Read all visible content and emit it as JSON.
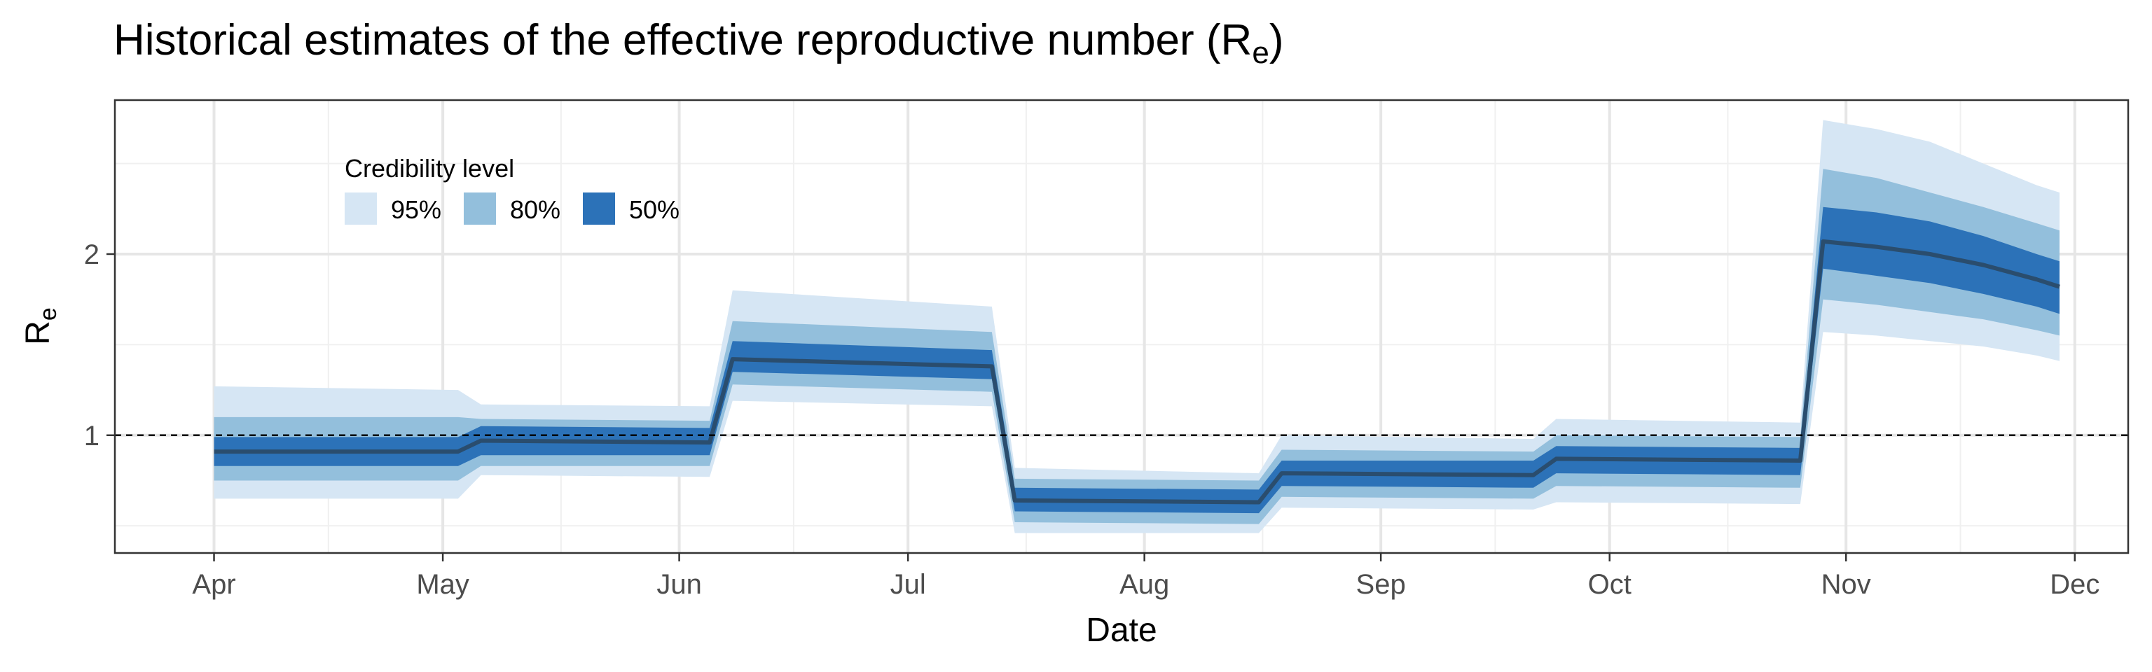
{
  "chart_data": {
    "type": "area",
    "title": "Historical estimates of the effective reproductive number (R",
    "title_subscript": "e",
    "title_suffix": ")",
    "xlabel": "Date",
    "ylabel": "R",
    "ylabel_subscript": "e",
    "x_ticks": [
      {
        "label": "Apr",
        "date": "2020-04-01"
      },
      {
        "label": "May",
        "date": "2020-05-01"
      },
      {
        "label": "Jun",
        "date": "2020-06-01"
      },
      {
        "label": "Jul",
        "date": "2020-07-01"
      },
      {
        "label": "Aug",
        "date": "2020-08-01"
      },
      {
        "label": "Sep",
        "date": "2020-09-01"
      },
      {
        "label": "Oct",
        "date": "2020-10-01"
      },
      {
        "label": "Nov",
        "date": "2020-11-01"
      },
      {
        "label": "Dec",
        "date": "2020-12-01"
      }
    ],
    "xlim": [
      "2020-03-19",
      "2020-12-08"
    ],
    "y_ticks": [
      1,
      2
    ],
    "ylim": [
      0.35,
      2.85
    ],
    "reference_line": {
      "y": 1,
      "style": "dashed"
    },
    "grid": true,
    "legend": {
      "title": "Credibility level",
      "position": "top-left",
      "entries": [
        {
          "label": "95%",
          "color": "#d6e6f4"
        },
        {
          "label": "80%",
          "color": "#93bfdc"
        },
        {
          "label": "50%",
          "color": "#2c72b8"
        }
      ]
    },
    "median_color": "#2a4d6e",
    "series": {
      "dates": [
        "2020-04-01",
        "2020-05-03",
        "2020-05-06",
        "2020-06-05",
        "2020-06-08",
        "2020-07-12",
        "2020-07-15",
        "2020-08-16",
        "2020-08-19",
        "2020-09-21",
        "2020-09-24",
        "2020-10-26",
        "2020-10-29",
        "2020-11-05",
        "2020-11-12",
        "2020-11-19",
        "2020-11-26",
        "2020-11-29"
      ],
      "median": [
        0.91,
        0.91,
        0.97,
        0.96,
        1.42,
        1.38,
        0.64,
        0.63,
        0.79,
        0.78,
        0.87,
        0.86,
        2.07,
        2.04,
        2.0,
        1.94,
        1.86,
        1.82
      ],
      "lower_50": [
        0.83,
        0.83,
        0.89,
        0.89,
        1.35,
        1.31,
        0.58,
        0.57,
        0.72,
        0.71,
        0.79,
        0.78,
        1.92,
        1.88,
        1.84,
        1.78,
        1.71,
        1.67
      ],
      "upper_50": [
        0.99,
        0.99,
        1.05,
        1.04,
        1.52,
        1.47,
        0.71,
        0.7,
        0.86,
        0.86,
        0.94,
        0.93,
        2.26,
        2.23,
        2.18,
        2.1,
        2.0,
        1.96
      ],
      "lower_80": [
        0.75,
        0.75,
        0.83,
        0.83,
        1.28,
        1.24,
        0.52,
        0.51,
        0.66,
        0.65,
        0.72,
        0.71,
        1.75,
        1.72,
        1.68,
        1.64,
        1.58,
        1.55
      ],
      "upper_80": [
        1.1,
        1.1,
        1.09,
        1.08,
        1.63,
        1.57,
        0.76,
        0.75,
        0.92,
        0.91,
        1.0,
        0.99,
        2.47,
        2.42,
        2.34,
        2.26,
        2.17,
        2.13
      ],
      "lower_95": [
        0.65,
        0.65,
        0.78,
        0.77,
        1.19,
        1.16,
        0.46,
        0.46,
        0.6,
        0.59,
        0.63,
        0.62,
        1.57,
        1.55,
        1.52,
        1.49,
        1.44,
        1.41
      ],
      "upper_95": [
        1.27,
        1.25,
        1.17,
        1.16,
        1.8,
        1.71,
        0.82,
        0.79,
        1.0,
        0.98,
        1.09,
        1.07,
        2.74,
        2.69,
        2.62,
        2.5,
        2.38,
        2.34
      ]
    }
  }
}
